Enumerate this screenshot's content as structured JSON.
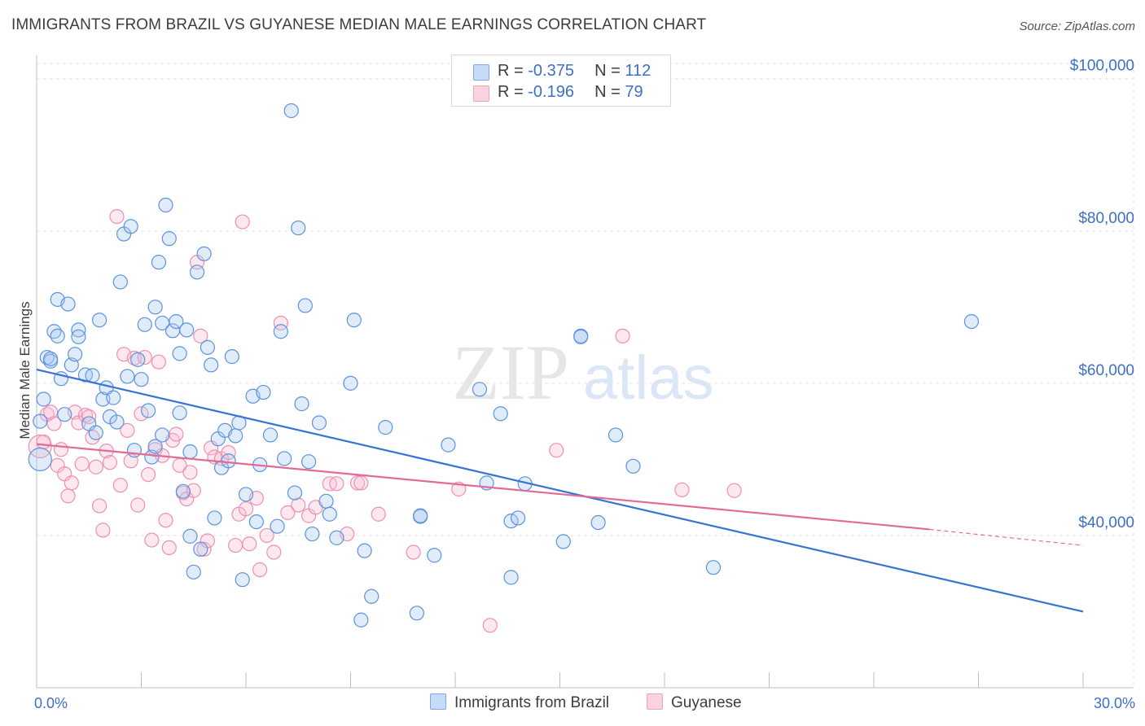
{
  "title": "IMMIGRANTS FROM BRAZIL VS GUYANESE MEDIAN MALE EARNINGS CORRELATION CHART",
  "source": "Source: ZipAtlas.com",
  "watermark": {
    "zip": "ZIP",
    "atlas": "atlas"
  },
  "colors": {
    "blue": "#7aaae8",
    "blue_line": "#3574d4",
    "pink": "#f4a3bf",
    "pink_line": "#e36a97",
    "axis_text": "#3d6fc4"
  },
  "legend": {
    "rows": [
      {
        "r_label": "R = ",
        "r_value": "-0.375",
        "n_label": "N = ",
        "n_value": "112"
      },
      {
        "r_label": "R = ",
        "r_value": "-0.196",
        "n_label": "N = ",
        "n_value": "79"
      }
    ]
  },
  "bottom_legend": {
    "series1": "Immigrants from Brazil",
    "series2": "Guyanese"
  },
  "chart_data": {
    "type": "scatter",
    "title": "IMMIGRANTS FROM BRAZIL VS GUYANESE MEDIAN MALE EARNINGS CORRELATION CHART",
    "xlabel": "",
    "ylabel": "Median Male Earnings",
    "xlim": [
      0,
      30
    ],
    "ylim": [
      20000,
      102000
    ],
    "x_tick_labels": [
      "0.0%",
      "30.0%"
    ],
    "y_ticks": [
      {
        "value": 40000,
        "label": "$40,000"
      },
      {
        "value": 60000,
        "label": "$60,000"
      },
      {
        "value": 80000,
        "label": "$80,000"
      },
      {
        "value": 100000,
        "label": "$100,000"
      }
    ],
    "grid": true,
    "legend_position": "top-center",
    "series": [
      {
        "name": "Immigrants from Brazil",
        "color": "#7aaae8",
        "trend": {
          "x": [
            0,
            30
          ],
          "y": [
            61800,
            30000
          ]
        },
        "points": [
          [
            0.1,
            50000
          ],
          [
            0.1,
            55000
          ],
          [
            0.2,
            57900
          ],
          [
            0.3,
            63400
          ],
          [
            0.4,
            62900
          ],
          [
            0.5,
            66800
          ],
          [
            0.6,
            71000
          ],
          [
            0.6,
            66200
          ],
          [
            0.7,
            60600
          ],
          [
            0.8,
            55900
          ],
          [
            0.9,
            70400
          ],
          [
            1.0,
            62400
          ],
          [
            1.1,
            63800
          ],
          [
            1.2,
            67000
          ],
          [
            1.2,
            66100
          ],
          [
            1.4,
            61100
          ],
          [
            1.5,
            54700
          ],
          [
            1.6,
            61000
          ],
          [
            1.7,
            53500
          ],
          [
            1.8,
            68300
          ],
          [
            1.9,
            57900
          ],
          [
            2.0,
            59400
          ],
          [
            2.1,
            55600
          ],
          [
            2.2,
            58100
          ],
          [
            2.3,
            54900
          ],
          [
            2.4,
            73300
          ],
          [
            2.5,
            79600
          ],
          [
            2.6,
            60900
          ],
          [
            2.7,
            80600
          ],
          [
            2.8,
            51200
          ],
          [
            2.9,
            63100
          ],
          [
            3.0,
            60500
          ],
          [
            3.1,
            67700
          ],
          [
            3.2,
            56400
          ],
          [
            3.3,
            50300
          ],
          [
            3.4,
            51700
          ],
          [
            3.4,
            70000
          ],
          [
            3.5,
            75900
          ],
          [
            3.6,
            67900
          ],
          [
            3.6,
            53200
          ],
          [
            3.7,
            83400
          ],
          [
            3.8,
            79000
          ],
          [
            3.9,
            66900
          ],
          [
            4.0,
            68100
          ],
          [
            4.1,
            63900
          ],
          [
            4.1,
            56100
          ],
          [
            4.2,
            45800
          ],
          [
            4.3,
            67000
          ],
          [
            4.4,
            51000
          ],
          [
            4.4,
            39900
          ],
          [
            4.5,
            35200
          ],
          [
            4.6,
            74600
          ],
          [
            4.7,
            38200
          ],
          [
            4.8,
            77000
          ],
          [
            4.9,
            64700
          ],
          [
            5.0,
            62400
          ],
          [
            5.1,
            42300
          ],
          [
            5.2,
            52700
          ],
          [
            5.3,
            48900
          ],
          [
            5.4,
            53800
          ],
          [
            5.5,
            49800
          ],
          [
            5.6,
            63500
          ],
          [
            5.7,
            53100
          ],
          [
            5.8,
            54800
          ],
          [
            5.9,
            34200
          ],
          [
            6.0,
            45400
          ],
          [
            6.2,
            58300
          ],
          [
            6.3,
            41800
          ],
          [
            6.4,
            49300
          ],
          [
            6.5,
            58800
          ],
          [
            6.7,
            53200
          ],
          [
            6.9,
            41200
          ],
          [
            7.0,
            66800
          ],
          [
            7.1,
            50100
          ],
          [
            7.3,
            95800
          ],
          [
            7.4,
            45600
          ],
          [
            7.5,
            80400
          ],
          [
            7.6,
            57300
          ],
          [
            7.7,
            70200
          ],
          [
            7.8,
            49700
          ],
          [
            7.9,
            40200
          ],
          [
            8.1,
            54800
          ],
          [
            8.3,
            44500
          ],
          [
            8.4,
            42800
          ],
          [
            8.6,
            39700
          ],
          [
            9.0,
            60000
          ],
          [
            9.1,
            68300
          ],
          [
            9.3,
            28900
          ],
          [
            9.4,
            38000
          ],
          [
            9.6,
            32000
          ],
          [
            10.0,
            54200
          ],
          [
            10.9,
            29800
          ],
          [
            11.0,
            42500
          ],
          [
            11.0,
            42600
          ],
          [
            11.4,
            37400
          ],
          [
            11.8,
            51900
          ],
          [
            12.7,
            59200
          ],
          [
            12.9,
            46900
          ],
          [
            13.3,
            56000
          ],
          [
            13.6,
            34500
          ],
          [
            13.6,
            41900
          ],
          [
            13.8,
            42300
          ],
          [
            14.0,
            46800
          ],
          [
            15.1,
            39200
          ],
          [
            15.6,
            66200
          ],
          [
            16.1,
            41700
          ],
          [
            16.6,
            53200
          ],
          [
            17.1,
            49100
          ],
          [
            19.4,
            35800
          ],
          [
            26.8,
            68100
          ],
          [
            15.6,
            66100
          ],
          [
            0.4,
            63200
          ]
        ]
      },
      {
        "name": "Guyanese",
        "color": "#f4a3bf",
        "trend": {
          "x": [
            0,
            25.6
          ],
          "y": [
            52000,
            40800
          ]
        },
        "trend_dashed": {
          "x": [
            25.6,
            30
          ],
          "y": [
            40800,
            38700
          ]
        },
        "points": [
          [
            0.1,
            51700
          ],
          [
            0.2,
            52300
          ],
          [
            0.3,
            55900
          ],
          [
            0.4,
            56200
          ],
          [
            0.5,
            54700
          ],
          [
            0.6,
            49200
          ],
          [
            0.7,
            51300
          ],
          [
            0.8,
            48100
          ],
          [
            0.9,
            45200
          ],
          [
            1.0,
            46900
          ],
          [
            1.1,
            56200
          ],
          [
            1.2,
            54800
          ],
          [
            1.3,
            49400
          ],
          [
            1.4,
            55800
          ],
          [
            1.5,
            55600
          ],
          [
            1.6,
            52900
          ],
          [
            1.7,
            49000
          ],
          [
            1.8,
            43900
          ],
          [
            1.9,
            40700
          ],
          [
            2.0,
            51100
          ],
          [
            2.1,
            49600
          ],
          [
            2.3,
            81900
          ],
          [
            2.4,
            46600
          ],
          [
            2.5,
            63800
          ],
          [
            2.6,
            53800
          ],
          [
            2.7,
            49800
          ],
          [
            2.8,
            63300
          ],
          [
            2.9,
            44000
          ],
          [
            3.0,
            56000
          ],
          [
            3.1,
            63400
          ],
          [
            3.2,
            48000
          ],
          [
            3.3,
            39400
          ],
          [
            3.4,
            51300
          ],
          [
            3.5,
            62800
          ],
          [
            3.6,
            50500
          ],
          [
            3.7,
            42000
          ],
          [
            3.8,
            38400
          ],
          [
            3.9,
            52500
          ],
          [
            4.0,
            53300
          ],
          [
            4.1,
            49200
          ],
          [
            4.2,
            45600
          ],
          [
            4.3,
            44800
          ],
          [
            4.4,
            48300
          ],
          [
            4.5,
            45900
          ],
          [
            4.6,
            75900
          ],
          [
            4.7,
            66200
          ],
          [
            4.8,
            38200
          ],
          [
            4.9,
            39300
          ],
          [
            5.0,
            51500
          ],
          [
            5.1,
            50300
          ],
          [
            5.3,
            50100
          ],
          [
            5.5,
            50900
          ],
          [
            5.7,
            38700
          ],
          [
            5.8,
            42800
          ],
          [
            5.9,
            81200
          ],
          [
            6.0,
            43500
          ],
          [
            6.1,
            38900
          ],
          [
            6.3,
            44900
          ],
          [
            6.4,
            35500
          ],
          [
            6.6,
            40000
          ],
          [
            6.8,
            37800
          ],
          [
            7.0,
            67900
          ],
          [
            7.2,
            43000
          ],
          [
            7.5,
            44000
          ],
          [
            7.8,
            42600
          ],
          [
            8.0,
            43700
          ],
          [
            8.4,
            46800
          ],
          [
            8.6,
            46800
          ],
          [
            8.9,
            40200
          ],
          [
            9.2,
            46900
          ],
          [
            9.3,
            46900
          ],
          [
            9.8,
            42800
          ],
          [
            10.8,
            37800
          ],
          [
            12.1,
            46100
          ],
          [
            13.0,
            28200
          ],
          [
            14.9,
            51200
          ],
          [
            16.8,
            66200
          ],
          [
            18.5,
            46000
          ],
          [
            20.0,
            45900
          ]
        ]
      }
    ]
  }
}
